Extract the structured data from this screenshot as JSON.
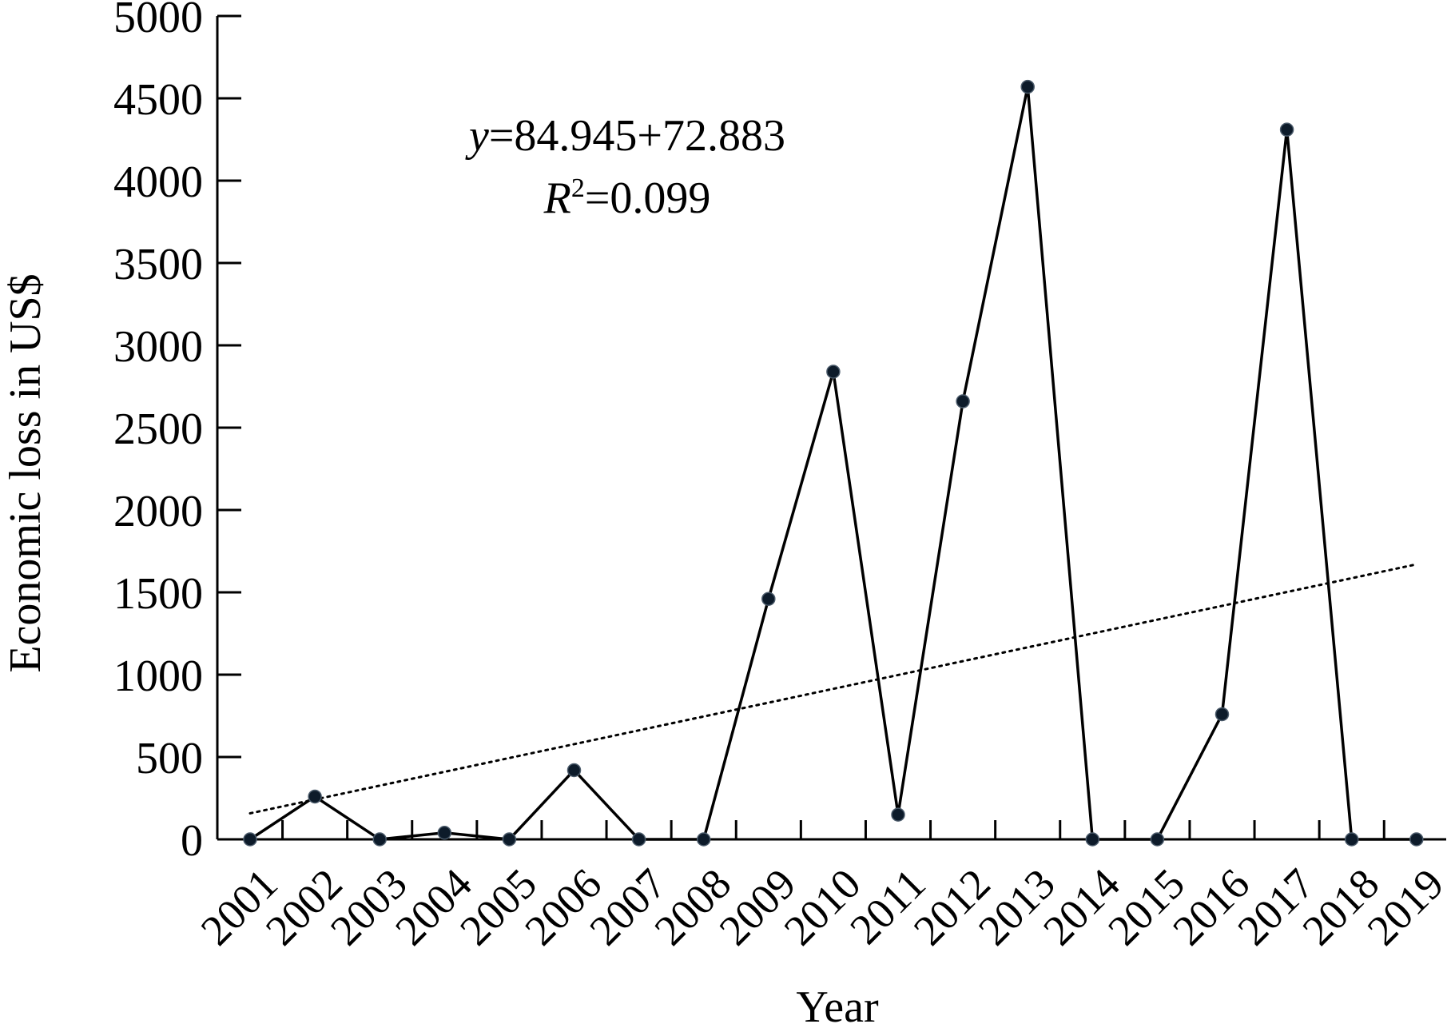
{
  "chart_data": {
    "type": "line",
    "xlabel": "Year",
    "ylabel": "Economic loss in US$",
    "ylim": [
      0,
      5000
    ],
    "y_ticks": [
      0,
      500,
      1000,
      1500,
      2000,
      2500,
      3000,
      3500,
      4000,
      4500,
      5000
    ],
    "categories": [
      "2001",
      "2002",
      "2003",
      "2004",
      "2005",
      "2006",
      "2007",
      "2008",
      "2009",
      "2010",
      "2011",
      "2012",
      "2013",
      "2014",
      "2015",
      "2016",
      "2017",
      "2018",
      "2019"
    ],
    "series": [
      {
        "values": [
          0,
          260,
          0,
          40,
          0,
          420,
          0,
          0,
          1460,
          2840,
          150,
          2660,
          4570,
          0,
          0,
          760,
          4310,
          0,
          0
        ],
        "line_style": "solid",
        "marker": "circle"
      }
    ],
    "trendline": {
      "style": "dotted",
      "start": 158,
      "end": 1670
    },
    "annotations": {
      "equation_var": "y",
      "equation_rest": "=84.945+72.883",
      "r2_var": "R",
      "r2_sup": "2",
      "r2_rest": "=0.099"
    },
    "grid": false,
    "legend": "none",
    "colors": {
      "line": "#000000",
      "marker_fill": "#0d1b2a",
      "marker_stroke": "#4a5a6a"
    }
  }
}
